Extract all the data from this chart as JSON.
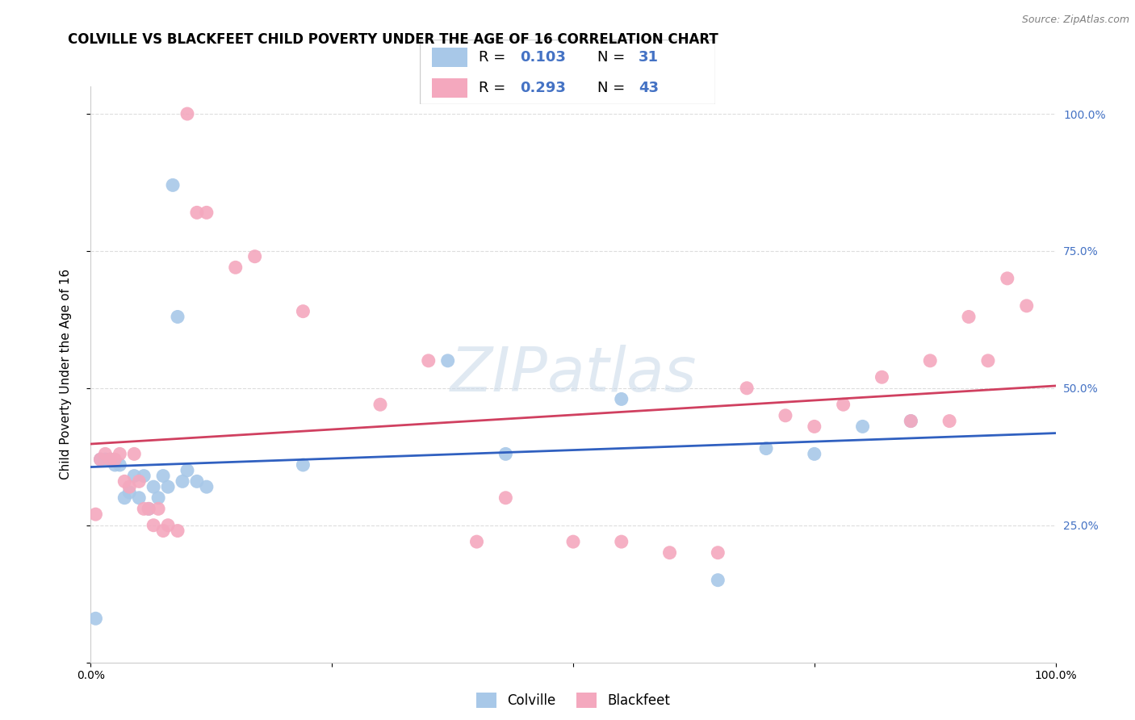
{
  "title": "COLVILLE VS BLACKFEET CHILD POVERTY UNDER THE AGE OF 16 CORRELATION CHART",
  "source": "Source: ZipAtlas.com",
  "ylabel": "Child Poverty Under the Age of 16",
  "colville_R": 0.103,
  "colville_N": 31,
  "blackfeet_R": 0.293,
  "blackfeet_N": 43,
  "colville_color": "#a8c8e8",
  "blackfeet_color": "#f4a8be",
  "colville_line_color": "#3060c0",
  "blackfeet_line_color": "#d04060",
  "watermark": "ZIPatlas",
  "colville_x": [
    0.005,
    0.01,
    0.015,
    0.02,
    0.025,
    0.03,
    0.035,
    0.04,
    0.045,
    0.05,
    0.055,
    0.06,
    0.065,
    0.07,
    0.075,
    0.08,
    0.085,
    0.09,
    0.095,
    0.1,
    0.11,
    0.12,
    0.22,
    0.37,
    0.43,
    0.55,
    0.65,
    0.7,
    0.75,
    0.8,
    0.85
  ],
  "colville_y": [
    0.08,
    0.37,
    0.37,
    0.37,
    0.36,
    0.36,
    0.3,
    0.31,
    0.34,
    0.3,
    0.34,
    0.28,
    0.32,
    0.3,
    0.34,
    0.32,
    0.87,
    0.63,
    0.33,
    0.35,
    0.33,
    0.32,
    0.36,
    0.55,
    0.38,
    0.48,
    0.15,
    0.39,
    0.38,
    0.43,
    0.44
  ],
  "blackfeet_x": [
    0.005,
    0.01,
    0.015,
    0.02,
    0.025,
    0.03,
    0.035,
    0.04,
    0.045,
    0.05,
    0.055,
    0.06,
    0.065,
    0.07,
    0.075,
    0.08,
    0.09,
    0.1,
    0.11,
    0.12,
    0.15,
    0.17,
    0.22,
    0.3,
    0.35,
    0.4,
    0.43,
    0.5,
    0.55,
    0.6,
    0.65,
    0.68,
    0.72,
    0.75,
    0.78,
    0.82,
    0.85,
    0.87,
    0.89,
    0.91,
    0.93,
    0.95,
    0.97
  ],
  "blackfeet_y": [
    0.27,
    0.37,
    0.38,
    0.37,
    0.37,
    0.38,
    0.33,
    0.32,
    0.38,
    0.33,
    0.28,
    0.28,
    0.25,
    0.28,
    0.24,
    0.25,
    0.24,
    1.0,
    0.82,
    0.82,
    0.72,
    0.74,
    0.64,
    0.47,
    0.55,
    0.22,
    0.3,
    0.22,
    0.22,
    0.2,
    0.2,
    0.5,
    0.45,
    0.43,
    0.47,
    0.52,
    0.44,
    0.55,
    0.44,
    0.63,
    0.55,
    0.7,
    0.65
  ],
  "background_color": "#ffffff",
  "grid_color": "#dddddd",
  "title_fontsize": 12,
  "axis_label_fontsize": 11,
  "tick_fontsize": 10,
  "right_axis_color": "#4472c4",
  "legend_text_color": "#4472c4",
  "xlim": [
    0,
    1.0
  ],
  "ylim": [
    0,
    1.05
  ],
  "x_ticks": [
    0,
    0.25,
    0.5,
    0.75,
    1.0
  ],
  "x_tick_labels": [
    "0.0%",
    "",
    "",
    "",
    "100.0%"
  ],
  "y_ticks": [
    0.0,
    0.25,
    0.5,
    0.75,
    1.0
  ],
  "y_tick_labels_right": [
    "",
    "25.0%",
    "50.0%",
    "75.0%",
    "100.0%"
  ]
}
